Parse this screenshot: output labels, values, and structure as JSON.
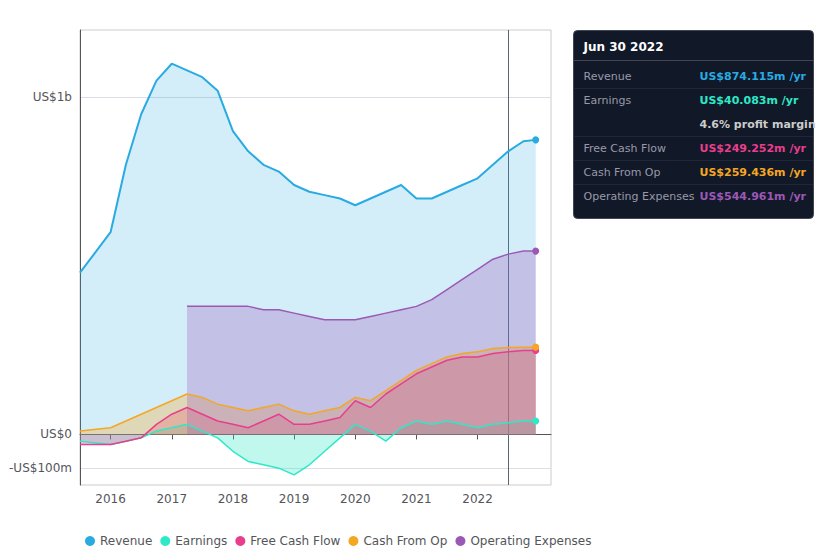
{
  "chart_data": {
    "type": "area",
    "x": [
      2015.5,
      2016.0,
      2016.25,
      2016.5,
      2016.75,
      2017.0,
      2017.25,
      2017.5,
      2017.75,
      2018.0,
      2018.25,
      2018.5,
      2018.75,
      2019.0,
      2019.25,
      2019.5,
      2019.75,
      2020.0,
      2020.25,
      2020.5,
      2020.75,
      2021.0,
      2021.25,
      2021.5,
      2021.75,
      2022.0,
      2022.25,
      2022.5,
      2022.75,
      2022.95
    ],
    "xlim": [
      2015.5,
      2023.2
    ],
    "xticks": [
      2016,
      2017,
      2018,
      2019,
      2020,
      2021,
      2022
    ],
    "ylim": [
      -150,
      1200
    ],
    "yticks": [
      {
        "value": -100,
        "label": "-US$100m"
      },
      {
        "value": 0,
        "label": "US$0"
      },
      {
        "value": 1000,
        "label": "US$1b"
      }
    ],
    "grid": true,
    "legend": "lower left",
    "series": [
      {
        "name": "Revenue",
        "color": "#29abe2",
        "values": [
          480,
          600,
          800,
          950,
          1050,
          1100,
          1080,
          1060,
          1020,
          900,
          840,
          800,
          780,
          740,
          720,
          710,
          700,
          680,
          700,
          720,
          740,
          700,
          700,
          720,
          740,
          760,
          800,
          840,
          870,
          874
        ]
      },
      {
        "name": "Earnings",
        "color": "#2ee8c8",
        "values": [
          -20,
          -30,
          -20,
          -10,
          10,
          20,
          30,
          10,
          -10,
          -50,
          -80,
          -90,
          -100,
          -120,
          -90,
          -50,
          -10,
          30,
          10,
          -20,
          20,
          40,
          30,
          40,
          30,
          20,
          30,
          35,
          40,
          40
        ]
      },
      {
        "name": "Free Cash Flow",
        "color": "#e83e8c",
        "values": [
          -30,
          -30,
          -20,
          -10,
          30,
          60,
          80,
          60,
          40,
          30,
          20,
          40,
          60,
          30,
          30,
          40,
          50,
          100,
          80,
          120,
          150,
          180,
          200,
          220,
          230,
          230,
          240,
          245,
          249,
          249
        ]
      },
      {
        "name": "Cash From Op",
        "color": "#f5a623",
        "values": [
          10,
          20,
          40,
          60,
          80,
          100,
          120,
          110,
          90,
          80,
          70,
          80,
          90,
          70,
          60,
          70,
          80,
          110,
          100,
          130,
          160,
          190,
          210,
          230,
          240,
          245,
          255,
          258,
          259,
          259
        ]
      },
      {
        "name": "Operating Expenses",
        "color": "#9b59b6",
        "values": [
          null,
          null,
          null,
          null,
          null,
          null,
          380,
          380,
          380,
          380,
          380,
          370,
          370,
          360,
          350,
          340,
          340,
          340,
          350,
          360,
          370,
          380,
          400,
          430,
          460,
          490,
          520,
          535,
          544,
          544
        ]
      }
    ],
    "annotations": [
      {
        "x": 2022.5,
        "title": "Jun 30 2022",
        "rows": [
          {
            "label": "Revenue",
            "value": "US$874.115m /yr",
            "color": "#29abe2"
          },
          {
            "label": "Earnings",
            "value": "US$40.083m /yr",
            "color": "#2ee8c8"
          },
          {
            "value": "4.6% profit margin",
            "color": "#cccccc"
          },
          {
            "label": "Free Cash Flow",
            "value": "US$249.252m /yr",
            "color": "#e83e8c"
          },
          {
            "label": "Cash From Op",
            "value": "US$259.436m /yr",
            "color": "#f5a623"
          },
          {
            "label": "Operating Expenses",
            "value": "US$544.961m /yr",
            "color": "#9b59b6"
          }
        ]
      }
    ]
  }
}
